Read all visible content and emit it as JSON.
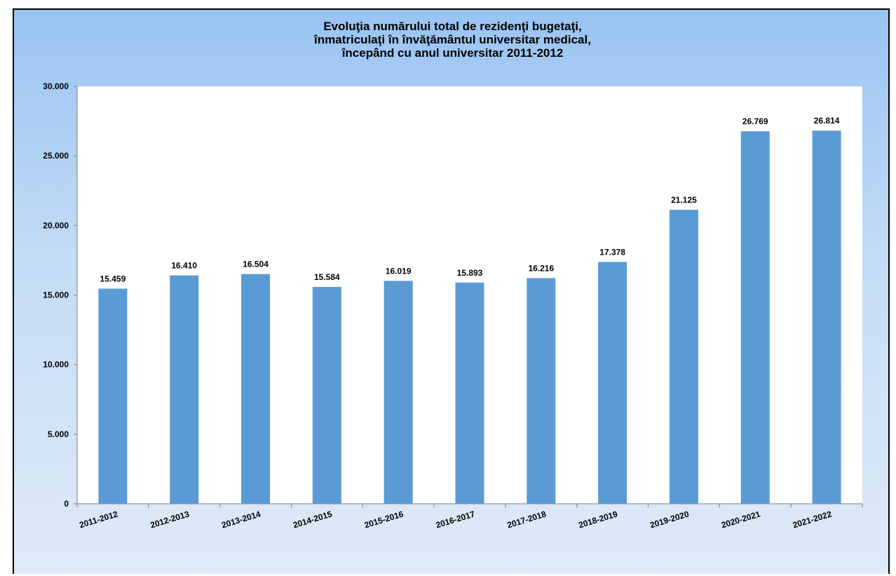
{
  "chart_data": {
    "type": "bar",
    "title_lines": [
      "Evoluţia numărului total de rezidenţi bugetaţi,",
      "înmatriculaţi în învăţământul universitar medical,",
      "începând cu anul universitar 2011-2012"
    ],
    "categories": [
      "2011-2012",
      "2012-2013",
      "2013-2014",
      "2014-2015",
      "2015-2016",
      "2016-2017",
      "2017-2018",
      "2018-2019",
      "2019-2020",
      "2020-2021",
      "2021-2022"
    ],
    "values": [
      15459,
      16410,
      16504,
      15584,
      16019,
      15893,
      16216,
      17378,
      21125,
      26769,
      26814
    ],
    "value_labels": [
      "15.459",
      "16.410",
      "16.504",
      "15.584",
      "16.019",
      "15.893",
      "16.216",
      "17.378",
      "21.125",
      "26.769",
      "26.814"
    ],
    "y_ticks": [
      0,
      5000,
      10000,
      15000,
      20000,
      25000,
      30000
    ],
    "y_tick_labels": [
      "0",
      "5.000",
      "10.000",
      "15.000",
      "20.000",
      "25.000",
      "30.000"
    ],
    "ylim": [
      0,
      30000
    ],
    "xlabel": "",
    "ylabel": "",
    "grid": false,
    "legend": "none",
    "colors": {
      "bar": "#5b9bd5",
      "plot_background": "#ffffff",
      "panel_top": "#99c3f2",
      "panel_bottom": "#dfeaf7"
    }
  }
}
